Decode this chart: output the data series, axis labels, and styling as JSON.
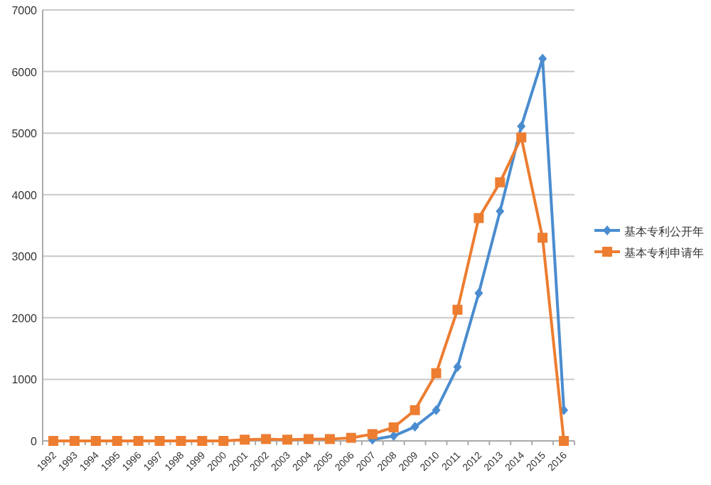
{
  "chart_data": {
    "type": "line",
    "categories": [
      "1992",
      "1993",
      "1994",
      "1995",
      "1996",
      "1997",
      "1998",
      "1999",
      "2000",
      "2001",
      "2002",
      "2003",
      "2004",
      "2005",
      "2006",
      "2007",
      "2008",
      "2009",
      "2010",
      "2011",
      "2012",
      "2013",
      "2014",
      "2015",
      "2016"
    ],
    "series": [
      {
        "name": "基本专利公开年",
        "color": "#4a8ccf",
        "marker": "diamond",
        "values": [
          null,
          null,
          null,
          null,
          null,
          null,
          null,
          null,
          null,
          null,
          null,
          null,
          null,
          null,
          null,
          20,
          80,
          230,
          500,
          1200,
          2400,
          3730,
          5110,
          6210,
          500
        ]
      },
      {
        "name": "基本专利申请年",
        "color": "#ed7d31",
        "marker": "square",
        "values": [
          0,
          0,
          0,
          0,
          0,
          0,
          0,
          0,
          0,
          20,
          30,
          20,
          30,
          30,
          50,
          110,
          220,
          500,
          1100,
          2130,
          3620,
          4200,
          4930,
          3300,
          0
        ]
      }
    ],
    "ylim": [
      0,
      7000
    ],
    "yticks": [
      0,
      1000,
      2000,
      3000,
      4000,
      5000,
      6000,
      7000
    ],
    "grid": "y",
    "legend": "right",
    "line_style": "solid"
  }
}
